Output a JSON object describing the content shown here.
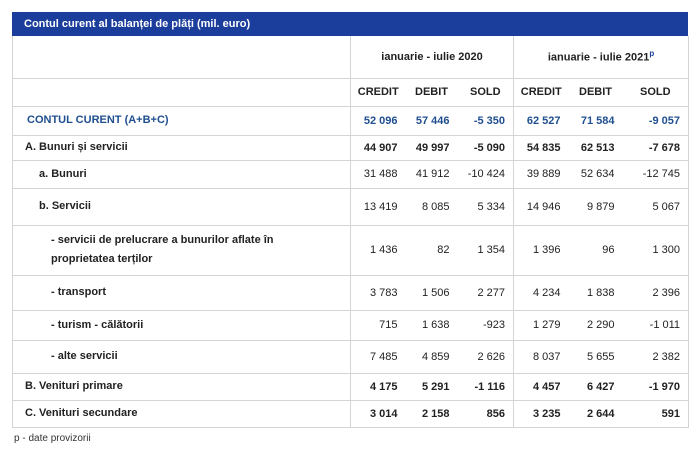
{
  "title": "Contul curent al balanței de plăți (mil. euro)",
  "table": {
    "periods": [
      {
        "label": "ianuarie - iulie 2020"
      },
      {
        "label": "ianuarie - iulie 2021",
        "note": "p"
      }
    ],
    "columns": [
      "CREDIT",
      "DEBIT",
      "SOLD",
      "CREDIT",
      "DEBIT",
      "SOLD"
    ],
    "rows": [
      {
        "label": "CONTUL CURENT (A+B+C)",
        "values": [
          "52 096",
          "57 446",
          "-5 350",
          "62 527",
          "71 584",
          "-9 057"
        ]
      },
      {
        "label": "A. Bunuri și servicii",
        "values": [
          "44 907",
          "49 997",
          "-5 090",
          "54 835",
          "62 513",
          "-7 678"
        ]
      },
      {
        "label": "a. Bunuri",
        "values": [
          "31 488",
          "41 912",
          "-10 424",
          "39 889",
          "52 634",
          "-12 745"
        ]
      },
      {
        "label": "b. Servicii",
        "values": [
          "13 419",
          "8 085",
          "5 334",
          "14 946",
          "9 879",
          "5 067"
        ]
      },
      {
        "label": "- servicii de prelucrare a bunurilor aflate în proprietatea terților",
        "values": [
          "1 436",
          "82",
          "1 354",
          "1 396",
          "96",
          "1 300"
        ]
      },
      {
        "label": "- transport",
        "values": [
          "3 783",
          "1 506",
          "2 277",
          "4 234",
          "1 838",
          "2 396"
        ]
      },
      {
        "label": "- turism - călătorii",
        "values": [
          "715",
          "1 638",
          "-923",
          "1 279",
          "2 290",
          "-1 011"
        ]
      },
      {
        "label": "- alte servicii",
        "values": [
          "7 485",
          "4 859",
          "2 626",
          "8 037",
          "5 655",
          "2 382"
        ]
      },
      {
        "label": "B. Venituri primare",
        "values": [
          "4 175",
          "5 291",
          "-1 116",
          "4 457",
          "6 427",
          "-1 970"
        ]
      },
      {
        "label": "C. Venituri secundare",
        "values": [
          "3 014",
          "2 158",
          "856",
          "3 235",
          "2 644",
          "591"
        ]
      }
    ]
  },
  "footnote": "p - date provizorii"
}
